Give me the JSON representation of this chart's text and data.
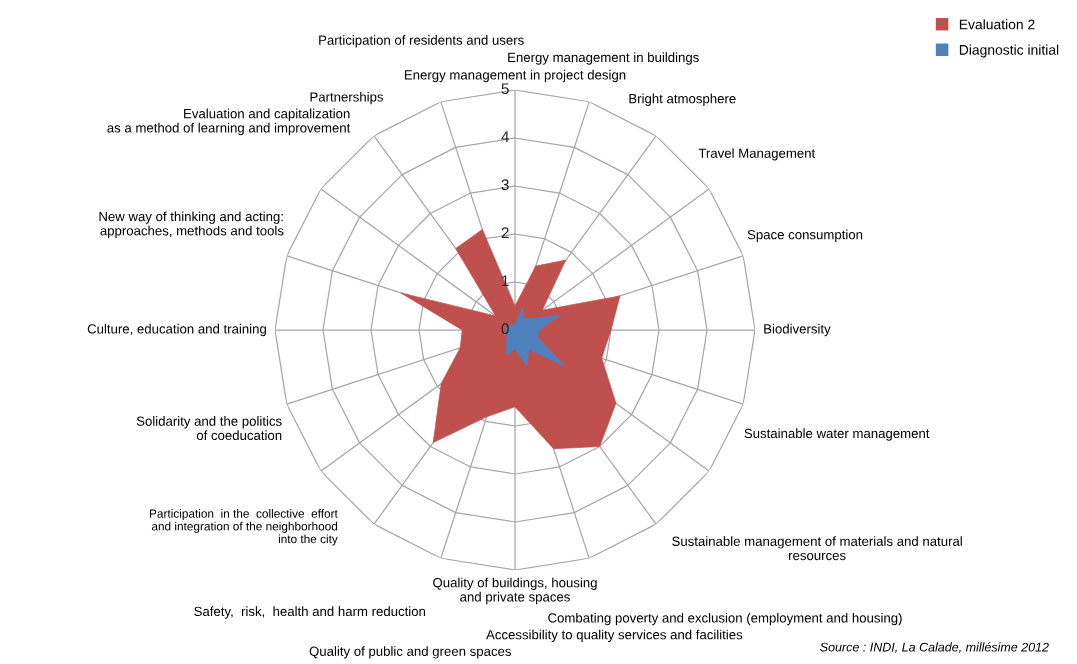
{
  "chart_data": {
    "type": "radar",
    "categories": [
      "Energy management in project design",
      "Energy management in buildings",
      "Bright atmosphere",
      "Travel Management",
      "Space consumption",
      "Biodiversity",
      "Sustainable water management",
      "Sustainable management of materials and natural\nresources",
      "Combating poverty and exclusion (employment and housing)",
      "Accessibility to quality services and facilities",
      "Quality of buildings, housing\nand private spaces",
      "Quality of public and green spaces",
      "Safety,  risk,  health and harm reduction",
      "Participation  in the  collective  effort\nand integration of the neighborhood\ninto the city",
      "Solidarity and the politics\nof coeducation",
      "Culture, education and training",
      "New way of thinking and acting:\napproaches, methods and tools",
      "Evaluation and capitalization\nas a method of learning and improvement",
      "Partnerships",
      "Participation of residents and users"
    ],
    "series": [
      {
        "name": "Evaluation 2",
        "color": "#c0504d",
        "type": "area",
        "values": [
          0.5,
          1.4,
          1.8,
          0.7,
          2.3,
          2.0,
          1.9,
          2.6,
          3.0,
          2.6,
          1.6,
          1.9,
          2.9,
          1.9,
          1.2,
          1.1,
          2.5,
          0.5,
          2.1,
          2.2
        ]
      },
      {
        "name": "Diagnostic initial",
        "color": "#4f81bd",
        "type": "area",
        "values": [
          0.1,
          0.5,
          0.3,
          0.4,
          1.0,
          0.5,
          0.5,
          1.3,
          0.5,
          0.8,
          0.4,
          0.55,
          0.3,
          0.2,
          0.2,
          0.2,
          0.2,
          0.1,
          0.2,
          0.1
        ]
      }
    ],
    "ylim": [
      0,
      5
    ],
    "yticks": [
      0,
      1,
      2,
      3,
      4,
      5
    ],
    "grid": true,
    "legend": "top right",
    "annotations": [
      "Source : INDI, La Calade, millésime 2012"
    ]
  }
}
